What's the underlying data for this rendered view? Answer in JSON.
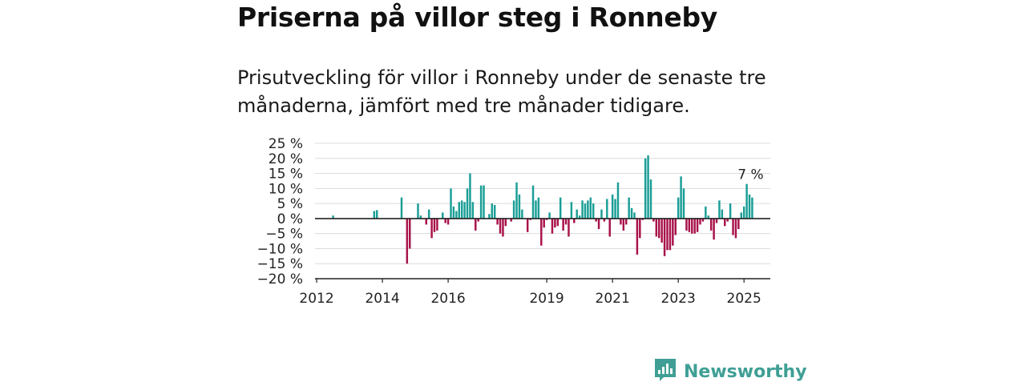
{
  "title": "Priserna på villor steg i Ronneby",
  "subtitle": "Prisutveckling för villor i Ronneby under de senaste tre månaderna, jämfört med tre månader tidigare.",
  "brand": "Newsworthy",
  "colors": {
    "positive": "#1a9e96",
    "negative": "#a8124a",
    "brand": "#3f9f95"
  },
  "chart_data": {
    "type": "bar",
    "ylabel_format": "{v} %",
    "ylim": [
      -20,
      25
    ],
    "yticks": [
      25,
      20,
      15,
      10,
      5,
      0,
      -5,
      -10,
      -15,
      -20
    ],
    "ytick_labels": [
      "25 %",
      "20 %",
      "15 %",
      "10 %",
      "5 %",
      "0 %",
      "−5 %",
      "−10 %",
      "−15 %",
      "−20 %"
    ],
    "xticks": [
      "2012",
      "2014",
      "2016",
      "2019",
      "2021",
      "2023",
      "2025"
    ],
    "grid": true,
    "annotation": {
      "label": "7 %",
      "at": "2025-04"
    },
    "series": [
      {
        "x": [
          "2012-07",
          "2013-10",
          "2013-11",
          "2014-08",
          "2014-10",
          "2014-11",
          "2015-02",
          "2015-03",
          "2015-05",
          "2015-06",
          "2015-07",
          "2015-08",
          "2015-09",
          "2015-11",
          "2015-12",
          "2016-01",
          "2016-02",
          "2016-03",
          "2016-04",
          "2016-05",
          "2016-06",
          "2016-07",
          "2016-08",
          "2016-09",
          "2016-10",
          "2016-11",
          "2016-12",
          "2017-01",
          "2017-02",
          "2017-04",
          "2017-05",
          "2017-06",
          "2017-07",
          "2017-08",
          "2017-09",
          "2017-10",
          "2017-12",
          "2018-01",
          "2018-02",
          "2018-03",
          "2018-04",
          "2018-06",
          "2018-07",
          "2018-08",
          "2018-09",
          "2018-10",
          "2018-11",
          "2018-12",
          "2019-01",
          "2019-02",
          "2019-03",
          "2019-04",
          "2019-05",
          "2019-06",
          "2019-07",
          "2019-08",
          "2019-09",
          "2019-10",
          "2019-11",
          "2019-12",
          "2020-01",
          "2020-02",
          "2020-03",
          "2020-04",
          "2020-05",
          "2020-06",
          "2020-07",
          "2020-08",
          "2020-09",
          "2020-10",
          "2020-11",
          "2020-12",
          "2021-01",
          "2021-02",
          "2021-03",
          "2021-04",
          "2021-05",
          "2021-06",
          "2021-07",
          "2021-08",
          "2021-09",
          "2021-10",
          "2021-11",
          "2021-12",
          "2022-01",
          "2022-02",
          "2022-03",
          "2022-04",
          "2022-05",
          "2022-06",
          "2022-07",
          "2022-08",
          "2022-09",
          "2022-10",
          "2022-11",
          "2022-12",
          "2023-01",
          "2023-02",
          "2023-03",
          "2023-04",
          "2023-05",
          "2023-06",
          "2023-07",
          "2023-08",
          "2023-09",
          "2023-10",
          "2023-11",
          "2023-12",
          "2024-01",
          "2024-02",
          "2024-03",
          "2024-04",
          "2024-05",
          "2024-06",
          "2024-07",
          "2024-08",
          "2024-09",
          "2024-10",
          "2024-11",
          "2024-12",
          "2025-01",
          "2025-02",
          "2025-03",
          "2025-04"
        ],
        "values": [
          1,
          2.5,
          2.8,
          7,
          -15,
          -10,
          5,
          1,
          -2,
          3,
          -6.5,
          -4.5,
          -4,
          2,
          -1.5,
          -2,
          10,
          4,
          2.5,
          5.5,
          6,
          5.5,
          10,
          15,
          5.5,
          -4,
          -1,
          11,
          11,
          1.5,
          5,
          4.5,
          -2,
          -5,
          -6,
          -2.5,
          -1,
          6,
          12,
          8,
          3,
          -4.5,
          -0.5,
          11,
          6,
          7,
          -9,
          -3,
          -0.5,
          2,
          -5,
          -3,
          -2.5,
          7,
          -4,
          -2,
          -6,
          5.5,
          -1.5,
          3,
          1,
          6,
          5,
          6,
          7,
          5,
          -1,
          -3.5,
          3,
          -1,
          6.5,
          -6,
          8,
          6.5,
          12,
          -2,
          -4,
          -2,
          7,
          3.5,
          2,
          -12,
          -6.5,
          -0.5,
          20,
          21,
          13,
          -1,
          -6,
          -6.5,
          -8,
          -12.5,
          -10.5,
          -10.5,
          -9,
          -5.5,
          7,
          14,
          10,
          -4,
          -4.5,
          -5,
          -5,
          -4.5,
          -2,
          -1,
          4,
          1,
          -4,
          -7,
          -1.5,
          6,
          3,
          -2.5,
          -1,
          5,
          -5.5,
          -6.5,
          -3.5,
          2,
          4,
          11.5,
          8,
          7
        ]
      }
    ]
  }
}
